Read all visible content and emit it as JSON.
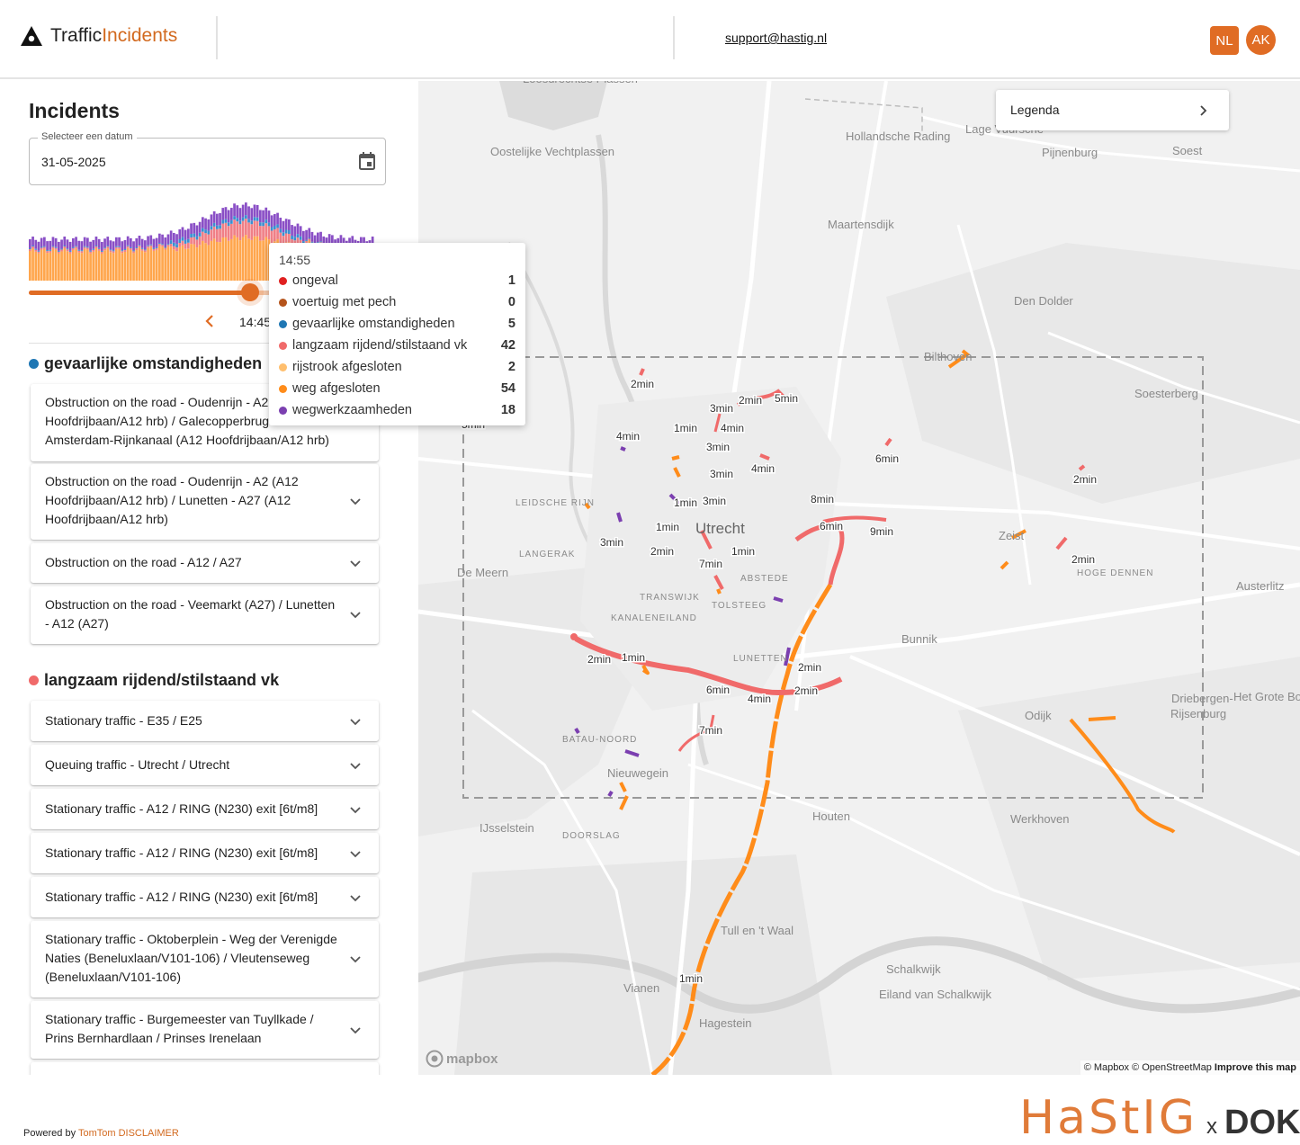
{
  "header": {
    "brand_a": "Traffic",
    "brand_b": "Incidents",
    "support_email": "support@hastig.nl",
    "lang_button": "NL",
    "user_initials": "AK"
  },
  "sidebar": {
    "title": "Incidents",
    "date_label": "Selecteer een datum",
    "date_value": "31-05-2025",
    "time_label": "14:45",
    "slider_progress_pct": 64
  },
  "groups": [
    {
      "title": "gevaarlijke omstandigheden",
      "color": "#1f77b4",
      "items": [
        {
          "text": "Obstruction on the road - Oudenrijn - A2 (A12 Hoofdrijbaan/A12 hrb) / Galecopperbrug - Amsterdam-Rijnkanaal (A12 Hoofdrijbaan/A12 hrb)"
        },
        {
          "text": "Obstruction on the road - Oudenrijn - A2 (A12 Hoofdrijbaan/A12 hrb) / Lunetten - A27 (A12 Hoofdrijbaan/A12 hrb)"
        },
        {
          "text": "Obstruction on the road - A12 / A27"
        },
        {
          "text": "Obstruction on the road - Veemarkt (A27) / Lunetten - A12 (A27)"
        }
      ]
    },
    {
      "title": "langzaam rijdend/stilstaand vk",
      "color": "#f06a6a",
      "items": [
        {
          "text": "Stationary traffic - E35 / E25"
        },
        {
          "text": "Queuing traffic - Utrecht / Utrecht"
        },
        {
          "text": "Stationary traffic - A12 / RING (N230) exit [6t/m8]"
        },
        {
          "text": "Stationary traffic - A12 / RING (N230) exit [6t/m8]"
        },
        {
          "text": "Stationary traffic - A12 / RING (N230) exit [6t/m8]"
        },
        {
          "text": "Stationary traffic - Oktoberplein - Weg der Verenigde Naties (Beneluxlaan/V101-106) / Vleutenseweg (Beneluxlaan/V101-106)"
        },
        {
          "text": "Stationary traffic - Burgemeester van Tuyllkade / Prins Bernhardlaan / Prinses Irenelaan"
        }
      ]
    }
  ],
  "tooltip": {
    "time": "14:55",
    "rows": [
      {
        "label": "ongeval",
        "count": "1",
        "color": "#e02020"
      },
      {
        "label": "voertuig met pech",
        "count": "0",
        "color": "#b5541c"
      },
      {
        "label": "gevaarlijke omstandigheden",
        "count": "5",
        "color": "#1f77b4"
      },
      {
        "label": "langzaam rijdend/stilstaand vk",
        "count": "42",
        "color": "#f06a6a"
      },
      {
        "label": "rijstrook afgesloten",
        "count": "2",
        "color": "#ffbf6e"
      },
      {
        "label": "weg afgesloten",
        "count": "54",
        "color": "#ff8c1a"
      },
      {
        "label": "wegwerkzaamheden",
        "count": "18",
        "color": "#7b3fb0"
      }
    ]
  },
  "map": {
    "legend_label": "Legenda",
    "attribution_a": "© Mapbox © OpenStreetMap",
    "attribution_b": "Improve this map",
    "mapbox_logo": "mapbox",
    "place_labels": [
      {
        "text": "Utrecht",
        "big": true
      },
      {
        "text": "Maartensdijk"
      },
      {
        "text": "Den Dolder"
      },
      {
        "text": "Bilthoven"
      },
      {
        "text": "Soest"
      },
      {
        "text": "Soesterberg"
      },
      {
        "text": "Zeist"
      },
      {
        "text": "Bunnik"
      },
      {
        "text": "Odijk"
      },
      {
        "text": "Driebergen-"
      },
      {
        "text": "Rijsenburg"
      },
      {
        "text": "Houten"
      },
      {
        "text": "IJsselstein"
      },
      {
        "text": "Nieuwegein"
      },
      {
        "text": "Vianen"
      },
      {
        "text": "De Meern"
      },
      {
        "text": "Austerlitz"
      },
      {
        "text": "Werkhoven"
      },
      {
        "text": "Schalkwijk"
      },
      {
        "text": "Eiland van Schalkwijk"
      },
      {
        "text": "Tull en 't Waal"
      },
      {
        "text": "Hagestein"
      },
      {
        "text": "Pijnenburg"
      },
      {
        "text": "Lage Vuursche"
      },
      {
        "text": "Hollandsche Rading"
      },
      {
        "text": "Loosdrechtse Plassen"
      },
      {
        "text": "Oostelijke Vechtplassen"
      },
      {
        "text": "Het Grote Bos"
      },
      {
        "text": "HOGE DENNEN"
      },
      {
        "text": "LEIDSCHE RIJN"
      },
      {
        "text": "LANGERAK"
      },
      {
        "text": "TRANSWIJK"
      },
      {
        "text": "KANALENEILAND"
      },
      {
        "text": "TOLSTEEG"
      },
      {
        "text": "ABSTEDE"
      },
      {
        "text": "LUNETTEN"
      },
      {
        "text": "DOORSLAG"
      },
      {
        "text": "BATAU-NOORD"
      }
    ],
    "duration_labels": [
      "2min",
      "3min",
      "2min",
      "5min",
      "4min",
      "1min",
      "4min",
      "3min",
      "3min",
      "4min",
      "6min",
      "2min",
      "1min",
      "3min",
      "8min",
      "6min",
      "9min",
      "1min",
      "3min",
      "2min",
      "7min",
      "1min",
      "2min",
      "2min",
      "1min",
      "2min",
      "6min",
      "4min",
      "2min",
      "7min",
      "5min",
      "1min"
    ]
  },
  "footer": {
    "powered_by": "Powered by",
    "tomtom": "TomTom",
    "disclaimer": "DISCLAIMER",
    "brand_hastig": "HaStIG",
    "brand_x": "x",
    "brand_dok": "DOK"
  }
}
